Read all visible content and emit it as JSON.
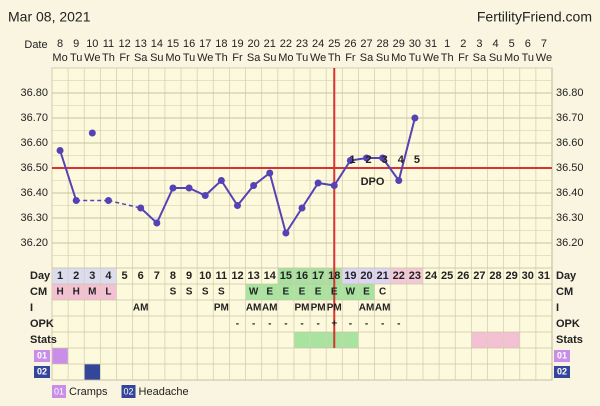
{
  "header": {
    "date": "Mar 08, 2021",
    "site": "FertilityFriend.com"
  },
  "chart_data": {
    "type": "line",
    "date_label": "Date",
    "dates": [
      "8",
      "9",
      "10",
      "11",
      "12",
      "13",
      "14",
      "15",
      "16",
      "17",
      "18",
      "19",
      "20",
      "21",
      "22",
      "23",
      "24",
      "25",
      "26",
      "27",
      "28",
      "29",
      "30",
      "31",
      "1",
      "2",
      "3",
      "4",
      "5",
      "6",
      "7"
    ],
    "weekdays": [
      "Mo",
      "Tu",
      "We",
      "Th",
      "Fr",
      "Sa",
      "Su",
      "Mo",
      "Tu",
      "We",
      "Th",
      "Fr",
      "Sa",
      "Su",
      "Mo",
      "Tu",
      "We",
      "Th",
      "Fr",
      "Sa",
      "Su",
      "Mo",
      "Tu",
      "We",
      "Th",
      "Fr",
      "Sa",
      "Su",
      "Mo",
      "Tu",
      "We"
    ],
    "categories": [
      1,
      2,
      3,
      4,
      5,
      6,
      7,
      8,
      9,
      10,
      11,
      12,
      13,
      14,
      15,
      16,
      17,
      18,
      19,
      20,
      21,
      22,
      23,
      24,
      25,
      26,
      27,
      28,
      29,
      30,
      31
    ],
    "values": [
      36.57,
      36.37,
      null,
      36.37,
      null,
      36.34,
      36.28,
      36.42,
      36.42,
      36.39,
      36.45,
      36.35,
      36.43,
      36.48,
      36.24,
      36.34,
      36.44,
      36.43,
      36.53,
      36.54,
      36.54,
      36.45,
      36.7,
      null,
      null,
      null,
      null,
      null,
      null,
      null,
      null
    ],
    "discarded_values": [
      null,
      null,
      36.64,
      null,
      null,
      null,
      null,
      null,
      null,
      null,
      null,
      null,
      null,
      null,
      null,
      null,
      null,
      null,
      null,
      null,
      null,
      null,
      null,
      null,
      null,
      null,
      null,
      null,
      null,
      null,
      null
    ],
    "color": "#5543b5",
    "ylim": [
      36.1,
      36.9
    ],
    "yticks": [
      {
        "value": 36.2,
        "label": "36.20"
      },
      {
        "value": 36.3,
        "label": "36.30"
      },
      {
        "value": 36.4,
        "label": "36.40"
      },
      {
        "value": 36.5,
        "label": "36.50"
      },
      {
        "value": 36.6,
        "label": "36.60"
      },
      {
        "value": 36.7,
        "label": "36.70"
      },
      {
        "value": 36.8,
        "label": "36.80"
      }
    ],
    "grid": true,
    "coverline": 36.5,
    "ovulation_day": 18,
    "line_color": "#d93232",
    "dpo": [
      1,
      2,
      3,
      4,
      5
    ],
    "dpo_label": "DPO"
  },
  "table": {
    "row_labels": [
      "Day",
      "CM",
      "I",
      "OPK",
      "Stats",
      "01",
      "02"
    ],
    "cm": [
      "H",
      "H",
      "M",
      "L",
      null,
      null,
      null,
      "S",
      "S",
      "S",
      "S",
      null,
      "W",
      "E",
      "E",
      "E",
      "E",
      "E",
      "W",
      "E",
      "C",
      null,
      null,
      null,
      null,
      null,
      null,
      null,
      null,
      null,
      null
    ],
    "intercourse": [
      null,
      null,
      null,
      null,
      null,
      "AM",
      null,
      null,
      null,
      null,
      "PM",
      null,
      "AM",
      "AM",
      null,
      "PM",
      "PM",
      "PM",
      null,
      "AM",
      "AM",
      null,
      null,
      null,
      null,
      null,
      null,
      null,
      null,
      null,
      null
    ],
    "opk": [
      null,
      null,
      null,
      null,
      null,
      null,
      null,
      null,
      null,
      null,
      null,
      "-",
      "-",
      "-",
      "-",
      "-",
      "-",
      "+",
      "-",
      "-",
      "-",
      "-",
      null,
      null,
      null,
      null,
      null,
      null,
      null,
      null,
      null
    ]
  },
  "legend": [
    {
      "code": "01",
      "label": "Cramps",
      "color": "#c98ee8"
    },
    {
      "code": "02",
      "label": "Headache",
      "color": "#34469a"
    }
  ]
}
